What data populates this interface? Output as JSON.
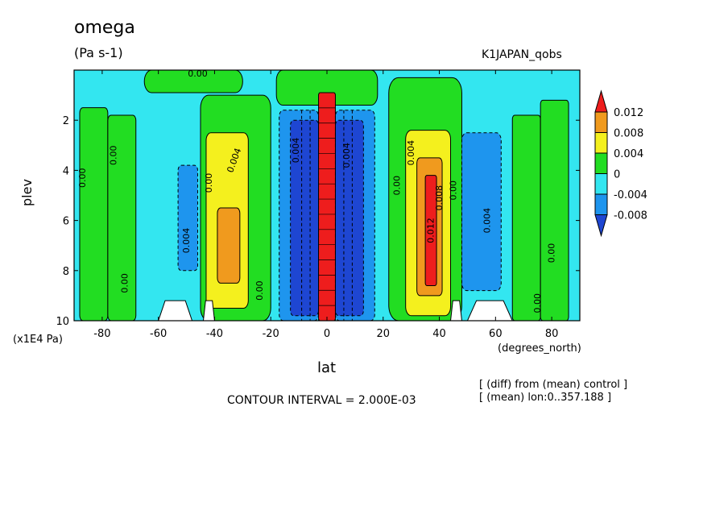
{
  "title": "omega",
  "units": "(Pa s-1)",
  "run_label": "K1JAPAN_qobs",
  "contour_interval": "CONTOUR INTERVAL = 2.000E-03",
  "notes": [
    "[ (diff) from (mean) control ]",
    "[ (mean) lon:0..357.188 ]"
  ],
  "chart_data": {
    "type": "heatmap",
    "title": "omega",
    "xlabel": "lat",
    "x_units": "(degrees_north)",
    "ylabel": "plev",
    "y_scale_label": "(x1E4 Pa)",
    "xlim": [
      -90,
      90
    ],
    "ylim": [
      10,
      0
    ],
    "x_ticks": [
      "-80",
      "-60",
      "-40",
      "-20",
      "0",
      "20",
      "40",
      "60",
      "80"
    ],
    "y_ticks": [
      "2",
      "4",
      "6",
      "8",
      "10"
    ],
    "colorbar": {
      "labels": [
        "0.012",
        "0.008",
        "0.004",
        "0",
        "-0.004",
        "-0.008"
      ],
      "colors": [
        "#ee1d1d",
        "#f09a1e",
        "#f4f01e",
        "#22dd22",
        "#33e6f0",
        "#1e95ee",
        "#1e46d2"
      ]
    },
    "background_color": "#33e6f0",
    "contour_labels": [
      {
        "text": "0.00",
        "lat": -87,
        "p": 4.3,
        "rot": -90
      },
      {
        "text": "0.00",
        "lat": -76,
        "p": 3.4,
        "rot": -90
      },
      {
        "text": "0.00",
        "lat": -72,
        "p": 8.5,
        "rot": -90
      },
      {
        "text": "0.00",
        "lat": -46,
        "p": 0.15,
        "rot": 0
      },
      {
        "text": "0.004",
        "lat": -50,
        "p": 6.8,
        "rot": -90
      },
      {
        "text": "0.00",
        "lat": -42,
        "p": 4.5,
        "rot": -90
      },
      {
        "text": "0.004",
        "lat": -33,
        "p": 3.6,
        "rot": -70
      },
      {
        "text": "0.00",
        "lat": -24,
        "p": 8.8,
        "rot": -90
      },
      {
        "text": "0.004",
        "lat": -11,
        "p": 3.2,
        "rot": -90
      },
      {
        "text": "0.004",
        "lat": 7,
        "p": 3.4,
        "rot": -90
      },
      {
        "text": "0.00",
        "lat": 25,
        "p": 4.6,
        "rot": -90
      },
      {
        "text": "0.004",
        "lat": 30,
        "p": 3.3,
        "rot": -90
      },
      {
        "text": "0.012",
        "lat": 37,
        "p": 6.4,
        "rot": -90
      },
      {
        "text": "0.008",
        "lat": 40,
        "p": 5.1,
        "rot": -90
      },
      {
        "text": "0.00",
        "lat": 45,
        "p": 4.8,
        "rot": -90
      },
      {
        "text": "0.004",
        "lat": 57,
        "p": 6.0,
        "rot": -90
      },
      {
        "text": "0.00",
        "lat": 80,
        "p": 7.3,
        "rot": -90
      },
      {
        "text": "0.00",
        "lat": 75,
        "p": 9.3,
        "rot": -90
      }
    ],
    "regions": [
      {
        "kind": "pos",
        "level": 1,
        "lat": [
          -88,
          -78
        ],
        "p": [
          1.5,
          10
        ],
        "w": 4
      },
      {
        "kind": "pos",
        "level": 1,
        "lat": [
          -78,
          -68
        ],
        "p": [
          1.8,
          10
        ],
        "w": 4
      },
      {
        "kind": "pos",
        "level": 1,
        "lat": [
          -65,
          -30
        ],
        "p": [
          0,
          0.9
        ],
        "w": 9
      },
      {
        "kind": "pos",
        "level": 1,
        "lat": [
          -45,
          -20
        ],
        "p": [
          1.0,
          10
        ],
        "w": 10
      },
      {
        "kind": "pos",
        "level": 2,
        "lat": [
          -43,
          -28
        ],
        "p": [
          2.5,
          9.5
        ],
        "w": 6
      },
      {
        "kind": "pos",
        "level": 3,
        "lat": [
          -39,
          -31
        ],
        "p": [
          5.5,
          8.5
        ],
        "w": 4
      },
      {
        "kind": "pos",
        "level": 1,
        "lat": [
          -18,
          18
        ],
        "p": [
          0,
          1.4
        ],
        "w": 8
      },
      {
        "kind": "pos",
        "level": 1,
        "lat": [
          22,
          48
        ],
        "p": [
          0.3,
          10
        ],
        "w": 12
      },
      {
        "kind": "pos",
        "level": 2,
        "lat": [
          28,
          44
        ],
        "p": [
          2.4,
          9.8
        ],
        "w": 7
      },
      {
        "kind": "pos",
        "level": 3,
        "lat": [
          32,
          41
        ],
        "p": [
          3.5,
          9.0
        ],
        "w": 4
      },
      {
        "kind": "pos",
        "level": 4,
        "lat": [
          35,
          39
        ],
        "p": [
          4.2,
          8.6
        ],
        "w": 2
      },
      {
        "kind": "pos",
        "level": 1,
        "lat": [
          66,
          76
        ],
        "p": [
          1.8,
          10
        ],
        "w": 3
      },
      {
        "kind": "pos",
        "level": 1,
        "lat": [
          76,
          86
        ],
        "p": [
          1.2,
          10
        ],
        "w": 3
      },
      {
        "kind": "neg",
        "level": 1,
        "lat": [
          -53,
          -46
        ],
        "p": [
          3.8,
          8.0
        ],
        "w": 4
      },
      {
        "kind": "neg",
        "level": 1,
        "lat": [
          -17,
          -3
        ],
        "p": [
          1.6,
          10
        ],
        "w": 5
      },
      {
        "kind": "neg",
        "level": 2,
        "lat": [
          -13,
          -3
        ],
        "p": [
          2.0,
          9.8
        ],
        "w": 4
      },
      {
        "kind": "neg",
        "level": 1,
        "lat": [
          3,
          17
        ],
        "p": [
          1.6,
          10
        ],
        "w": 5
      },
      {
        "kind": "neg",
        "level": 2,
        "lat": [
          3,
          13
        ],
        "p": [
          2.0,
          9.8
        ],
        "w": 4
      },
      {
        "kind": "neg",
        "level": 1,
        "lat": [
          48,
          62
        ],
        "p": [
          2.5,
          8.8
        ],
        "w": 6
      },
      {
        "kind": "eq",
        "level": 4,
        "lat": [
          -3,
          3
        ],
        "p": [
          0.9,
          10
        ],
        "w": 2
      }
    ],
    "missing_regions": [
      {
        "lat": [
          -60,
          -48
        ],
        "p": [
          9.2,
          10
        ]
      },
      {
        "lat": [
          -44,
          -40
        ],
        "p": [
          9.2,
          10
        ]
      },
      {
        "lat": [
          44,
          48
        ],
        "p": [
          9.2,
          10
        ]
      },
      {
        "lat": [
          50,
          66
        ],
        "p": [
          9.2,
          10
        ]
      }
    ]
  }
}
